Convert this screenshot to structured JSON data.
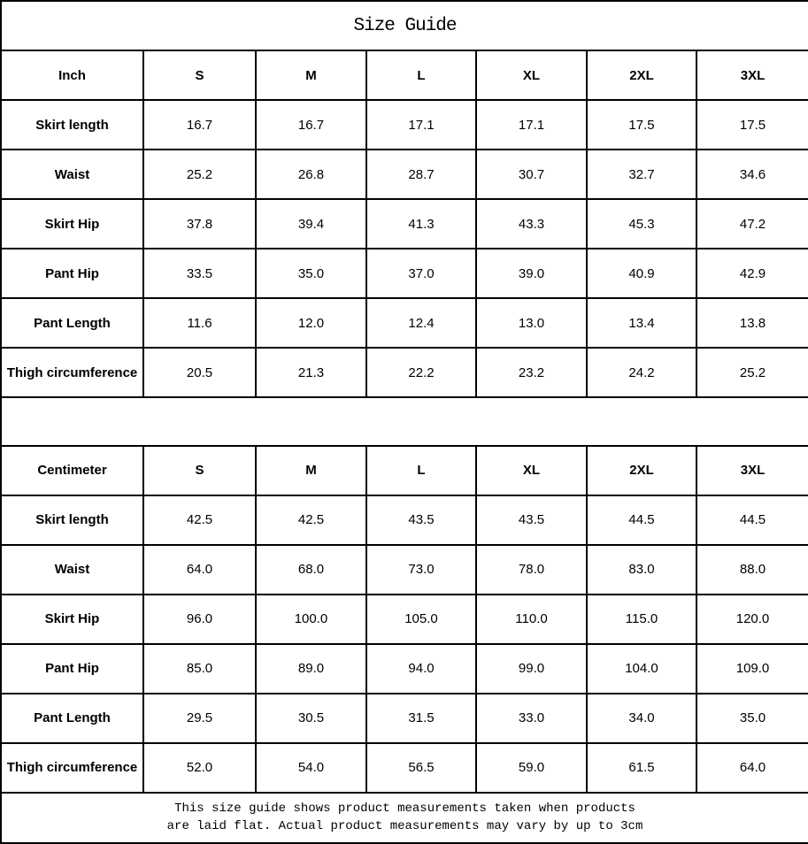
{
  "title": "Size Guide",
  "sizes": [
    "S",
    "M",
    "L",
    "XL",
    "2XL",
    "3XL"
  ],
  "tables": [
    {
      "unit_label": "Inch",
      "rows": [
        {
          "label": "Skirt length",
          "values": [
            "16.7",
            "16.7",
            "17.1",
            "17.1",
            "17.5",
            "17.5"
          ]
        },
        {
          "label": "Waist",
          "values": [
            "25.2",
            "26.8",
            "28.7",
            "30.7",
            "32.7",
            "34.6"
          ]
        },
        {
          "label": "Skirt Hip",
          "values": [
            "37.8",
            "39.4",
            "41.3",
            "43.3",
            "45.3",
            "47.2"
          ]
        },
        {
          "label": "Pant Hip",
          "values": [
            "33.5",
            "35.0",
            "37.0",
            "39.0",
            "40.9",
            "42.9"
          ]
        },
        {
          "label": "Pant Length",
          "values": [
            "11.6",
            "12.0",
            "12.4",
            "13.0",
            "13.4",
            "13.8"
          ]
        },
        {
          "label": "Thigh circumference",
          "values": [
            "20.5",
            "21.3",
            "22.2",
            "23.2",
            "24.2",
            "25.2"
          ]
        }
      ]
    },
    {
      "unit_label": "Centimeter",
      "rows": [
        {
          "label": "Skirt length",
          "values": [
            "42.5",
            "42.5",
            "43.5",
            "43.5",
            "44.5",
            "44.5"
          ]
        },
        {
          "label": "Waist",
          "values": [
            "64.0",
            "68.0",
            "73.0",
            "78.0",
            "83.0",
            "88.0"
          ]
        },
        {
          "label": "Skirt Hip",
          "values": [
            "96.0",
            "100.0",
            "105.0",
            "110.0",
            "115.0",
            "120.0"
          ]
        },
        {
          "label": "Pant Hip",
          "values": [
            "85.0",
            "89.0",
            "94.0",
            "99.0",
            "104.0",
            "109.0"
          ]
        },
        {
          "label": "Pant Length",
          "values": [
            "29.5",
            "30.5",
            "31.5",
            "33.0",
            "34.0",
            "35.0"
          ]
        },
        {
          "label": "Thigh circumference",
          "values": [
            "52.0",
            "54.0",
            "56.5",
            "59.0",
            "61.5",
            "64.0"
          ]
        }
      ]
    }
  ],
  "footer": {
    "line1": "This size guide shows product measurements taken when products",
    "line2": "are laid flat. Actual product measurements may vary by up to 3cm"
  }
}
